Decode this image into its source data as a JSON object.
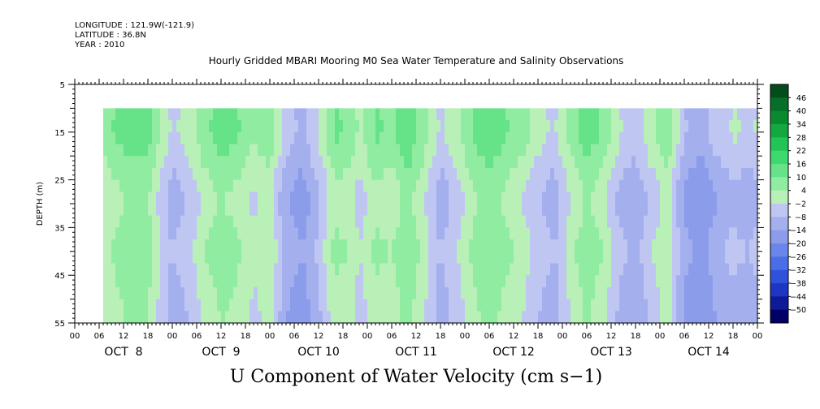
{
  "header": {
    "longitude": "LONGITUDE : 121.9W(-121.9)",
    "latitude": "LATITUDE : 36.8N",
    "year": "YEAR : 2010"
  },
  "chart_data": {
    "type": "heatmap",
    "title": "Hourly Gridded MBARI Mooring M0 Sea Water Temperature and Salinity Observations",
    "xlabel": "U Component of Water Velocity (cm s−1)",
    "ylabel": "DEPTH (m)",
    "ylim": [
      5,
      55
    ],
    "y_inverted": true,
    "y_ticks": [
      5,
      15,
      25,
      35,
      45,
      55
    ],
    "xlim_hours": [
      0,
      168
    ],
    "hour_tick_labels": [
      "00",
      "06",
      "12",
      "18",
      "00",
      "06",
      "12",
      "18",
      "00",
      "06",
      "12",
      "18",
      "00",
      "06",
      "12",
      "18",
      "00",
      "06",
      "12",
      "18",
      "00",
      "06",
      "12",
      "18",
      "00",
      "06",
      "12",
      "18",
      "00"
    ],
    "day_labels": [
      "OCT  8",
      "OCT  9",
      "OCT 10",
      "OCT 11",
      "OCT 12",
      "OCT 13",
      "OCT 14"
    ],
    "data_extent": {
      "hour_start": 7,
      "hour_end": 168,
      "depth_top": 10,
      "depth_bottom": 55
    },
    "colorbar": {
      "levels": [
        -50,
        -44,
        -38,
        -32,
        -26,
        -20,
        -14,
        -8,
        -2,
        4,
        10,
        16,
        22,
        28,
        34,
        40,
        46
      ],
      "labels": [
        "46",
        "40",
        "34",
        "28",
        "22",
        "16",
        "10",
        "4",
        "−2",
        "−8",
        "−14",
        "−20",
        "−26",
        "−32",
        "−38",
        "−44",
        "−50"
      ],
      "colors": [
        "#000066",
        "#0f1a99",
        "#1f36c4",
        "#2f52dc",
        "#4a6ee8",
        "#6a86ea",
        "#8a9cea",
        "#a4b0ee",
        "#c0c6f2",
        "#b8f0b8",
        "#90eca0",
        "#66e288",
        "#3ed86e",
        "#22c456",
        "#14a840",
        "#0a8a30",
        "#06702a",
        "#034d1c"
      ]
    },
    "time_profile": [
      {
        "hour": 7,
        "u": 2
      },
      {
        "hour": 10,
        "u": 6
      },
      {
        "hour": 14,
        "u": 9
      },
      {
        "hour": 18,
        "u": 8
      },
      {
        "hour": 20,
        "u": 2
      },
      {
        "hour": 24,
        "u": -8
      },
      {
        "hour": 28,
        "u": -4
      },
      {
        "hour": 32,
        "u": 4
      },
      {
        "hour": 36,
        "u": 8
      },
      {
        "hour": 40,
        "u": 6
      },
      {
        "hour": 44,
        "u": 0
      },
      {
        "hour": 48,
        "u": 4
      },
      {
        "hour": 52,
        "u": -10
      },
      {
        "hour": 56,
        "u": -14
      },
      {
        "hour": 60,
        "u": -6
      },
      {
        "hour": 64,
        "u": 6
      },
      {
        "hour": 68,
        "u": 4
      },
      {
        "hour": 70,
        "u": -2
      },
      {
        "hour": 74,
        "u": 6
      },
      {
        "hour": 78,
        "u": 4
      },
      {
        "hour": 82,
        "u": 10
      },
      {
        "hour": 86,
        "u": 2
      },
      {
        "hour": 90,
        "u": -8
      },
      {
        "hour": 94,
        "u": -2
      },
      {
        "hour": 98,
        "u": 6
      },
      {
        "hour": 102,
        "u": 10
      },
      {
        "hour": 106,
        "u": 6
      },
      {
        "hour": 110,
        "u": 2
      },
      {
        "hour": 114,
        "u": -4
      },
      {
        "hour": 118,
        "u": -8
      },
      {
        "hour": 122,
        "u": 2
      },
      {
        "hour": 126,
        "u": 9
      },
      {
        "hour": 130,
        "u": 4
      },
      {
        "hour": 134,
        "u": -6
      },
      {
        "hour": 138,
        "u": -10
      },
      {
        "hour": 142,
        "u": -2
      },
      {
        "hour": 146,
        "u": 4
      },
      {
        "hour": 150,
        "u": -12
      },
      {
        "hour": 154,
        "u": -16
      },
      {
        "hour": 158,
        "u": -10
      },
      {
        "hour": 162,
        "u": -6
      },
      {
        "hour": 166,
        "u": -8
      },
      {
        "hour": 168,
        "u": -6
      }
    ],
    "depth_profile": [
      {
        "depth": 10,
        "du": 4
      },
      {
        "depth": 15,
        "du": 5
      },
      {
        "depth": 20,
        "du": 2
      },
      {
        "depth": 25,
        "du": -2
      },
      {
        "depth": 30,
        "du": -4
      },
      {
        "depth": 35,
        "du": -2
      },
      {
        "depth": 40,
        "du": 0
      },
      {
        "depth": 45,
        "du": -2
      },
      {
        "depth": 50,
        "du": -3
      },
      {
        "depth": 55,
        "du": -4
      }
    ]
  }
}
